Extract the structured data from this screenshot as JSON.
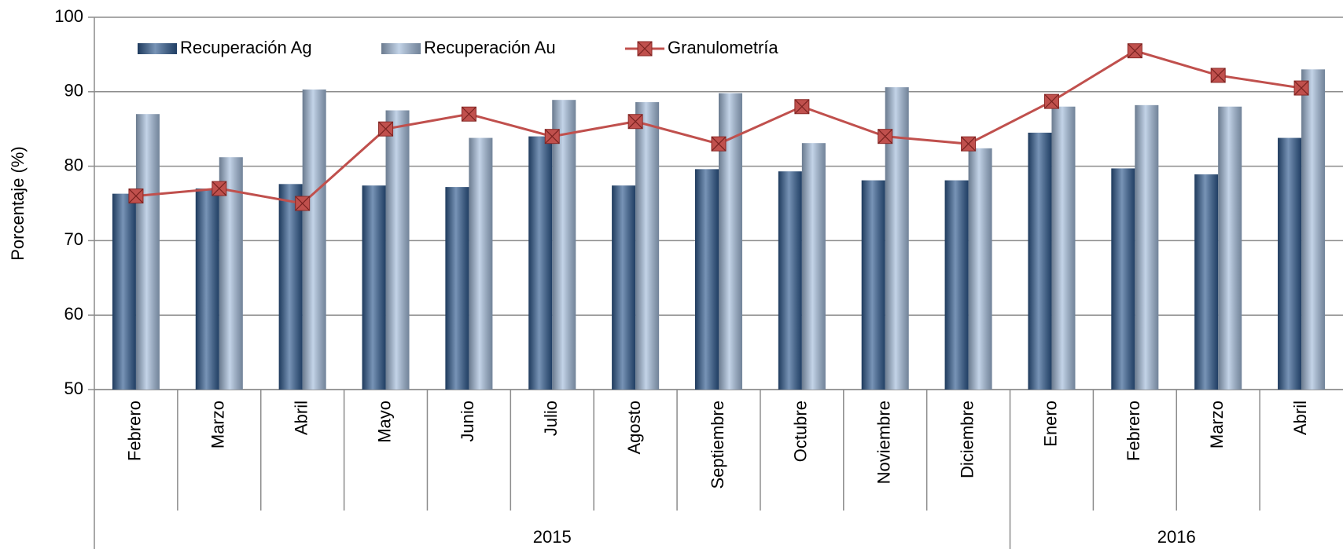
{
  "chart_data": {
    "type": "bar-line",
    "y_label": "Porcentaje (%)",
    "category_groups": [
      {
        "label": "2015",
        "categories": [
          "Febrero",
          "Marzo",
          "Abril",
          "Mayo",
          "Junio",
          "Julio",
          "Agosto",
          "Septiembre",
          "Octubre",
          "Noviembre",
          "Diciembre"
        ]
      },
      {
        "label": "2016",
        "categories": [
          "Enero",
          "Febrero",
          "Marzo",
          "Abril"
        ]
      }
    ],
    "series": [
      {
        "name": "Recuperación Ag",
        "type": "bar",
        "color": "#2f5a8f",
        "values": [
          76.3,
          77,
          77.6,
          77.4,
          77.2,
          84,
          77.4,
          79.6,
          79.3,
          78.1,
          78.1,
          84.5,
          79.7,
          78.9,
          83.8
        ]
      },
      {
        "name": "Recuperación Au",
        "type": "bar",
        "color": "#a3bcdb",
        "values": [
          87,
          81.2,
          90.3,
          87.5,
          83.8,
          88.9,
          88.6,
          89.8,
          83.1,
          90.6,
          82.4,
          88,
          88.2,
          88,
          93
        ]
      },
      {
        "name": "Granulometría",
        "type": "line",
        "color": "#c0504d",
        "values": [
          76,
          77,
          75,
          85,
          87,
          84,
          86,
          83,
          88,
          84,
          83,
          88.7,
          95.5,
          92.2,
          90.5
        ]
      }
    ],
    "ylim": [
      50,
      100
    ],
    "yticks": [
      50,
      60,
      70,
      80,
      90,
      100
    ],
    "grid": true,
    "legend": "top-left"
  }
}
